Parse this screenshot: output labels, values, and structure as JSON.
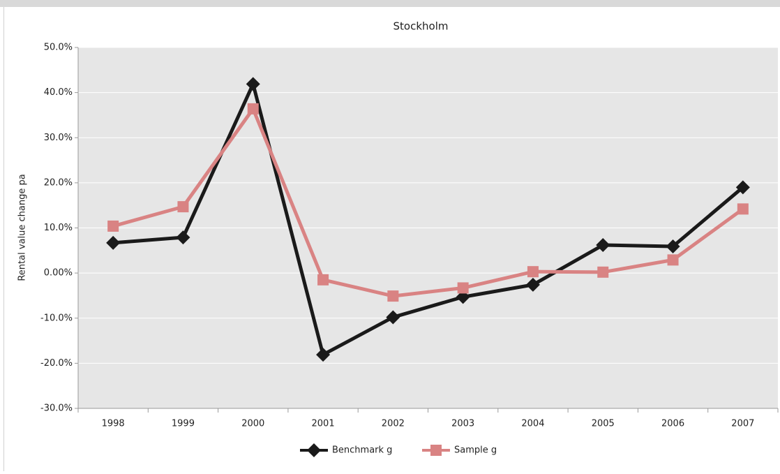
{
  "chart_data": {
    "type": "line",
    "title": "Stockholm",
    "y_label": "Rental value change pa",
    "categories": [
      "1998",
      "1999",
      "2000",
      "2001",
      "2002",
      "2003",
      "2004",
      "2005",
      "2006",
      "2007"
    ],
    "series": [
      {
        "name": "Benchmark g",
        "color": "#1a1a1a",
        "marker": "diamond",
        "values": [
          6.7,
          7.9,
          41.9,
          -18.1,
          -9.8,
          -5.3,
          -2.6,
          6.2,
          5.9,
          19.0
        ]
      },
      {
        "name": "Sample g",
        "color": "#d98383",
        "marker": "square",
        "values": [
          10.4,
          14.7,
          36.4,
          -1.5,
          -5.1,
          -3.3,
          0.3,
          0.2,
          2.9,
          14.2
        ]
      }
    ],
    "ylim": [
      -30,
      50
    ],
    "yticks": [
      {
        "value": -30,
        "label": "-30.0%"
      },
      {
        "value": -20,
        "label": "-20.0%"
      },
      {
        "value": -10,
        "label": "-10.0%"
      },
      {
        "value": 0,
        "label": "0.00%"
      },
      {
        "value": 10,
        "label": "10.0%"
      },
      {
        "value": 20,
        "label": "20.0%"
      },
      {
        "value": 30,
        "label": "30.0%"
      },
      {
        "value": 40,
        "label": "40.0%"
      },
      {
        "value": 50,
        "label": "50.0%"
      }
    ],
    "grid": true,
    "legend": "bottom"
  }
}
